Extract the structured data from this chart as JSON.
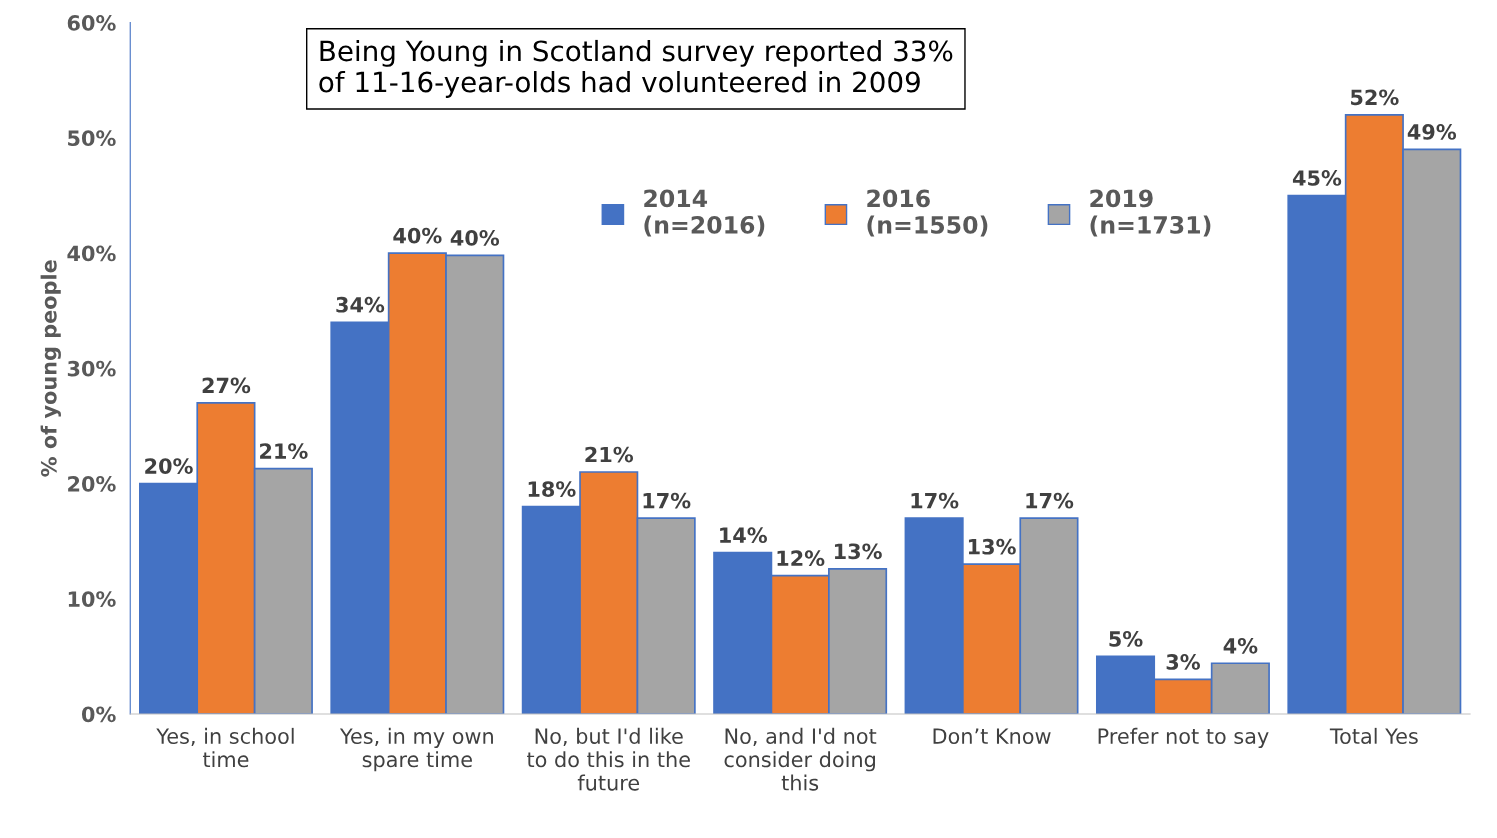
{
  "chart_data": {
    "type": "bar",
    "categories": [
      "Yes, in school time",
      "Yes, in my own spare time",
      "No, but I'd like to do this in the future",
      "No, and I'd not consider doing this",
      "Don’t Know",
      "Prefer not to say",
      "Total Yes"
    ],
    "series": [
      {
        "name": "2014\n(n=2016)",
        "color": "#4472c4",
        "values": [
          20,
          34,
          18,
          14,
          17,
          5,
          45
        ],
        "value_labels": [
          "20%",
          "34%",
          "18%",
          "14%",
          "17%",
          "5%",
          "45%"
        ]
      },
      {
        "name": "2016\n(n=1550)",
        "color": "#ed7d31",
        "values": [
          27,
          40,
          21,
          12,
          13,
          3,
          52
        ],
        "value_labels": [
          "27%",
          "40%",
          "21%",
          "12%",
          "13%",
          "3%",
          "52%"
        ]
      },
      {
        "name": "2019\n(n=1731)",
        "color": "#a5a5a5",
        "values": [
          21.3,
          39.8,
          17,
          12.6,
          17,
          4.4,
          49
        ],
        "value_labels": [
          "21%",
          "40%",
          "17%",
          "13%",
          "17%",
          "4%",
          "49%"
        ]
      }
    ],
    "ylabel": "% of young people",
    "ylim": [
      0,
      60
    ],
    "yticks": [
      {
        "value": 0,
        "label": "0%"
      },
      {
        "value": 10,
        "label": "10%"
      },
      {
        "value": 20,
        "label": "20%"
      },
      {
        "value": 30,
        "label": "30%"
      },
      {
        "value": 40,
        "label": "40%"
      },
      {
        "value": 50,
        "label": "50%"
      },
      {
        "value": 60,
        "label": "60%"
      }
    ],
    "annotations": [
      "Being Young in Scotland survey reported 33% of 11-16-year-olds had volunteered in 2009"
    ],
    "grid": false,
    "legend": "top"
  }
}
